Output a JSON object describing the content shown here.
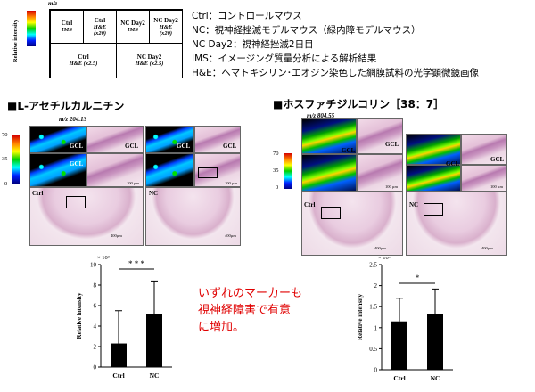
{
  "legend": {
    "mz_label": "m/z",
    "y_label": "Relative intensity",
    "cells": {
      "ctrl_ims": {
        "title": "Ctrl",
        "sub": "IMS"
      },
      "ctrl_he20": {
        "title": "Ctrl",
        "sub1": "H&E",
        "sub2": "(x20)"
      },
      "nc_ims": {
        "title": "NC Day2",
        "sub": "IMS"
      },
      "nc_he20": {
        "title": "NC Day2",
        "sub1": "H&E",
        "sub2": "(x20)"
      },
      "ctrl_he25": {
        "title": "Ctrl",
        "sub": "H&E (x2.5)"
      },
      "nc_he25": {
        "title": "NC Day2",
        "sub": "H&E (x2.5)"
      }
    },
    "definitions": [
      "Ctrl：コントロールマウス",
      "NC：視神経挫滅モデルマウス（緑内障モデルマウス）",
      "NC Day2：視神経挫滅2日目",
      "IMS：イメージング質量分析による解析結果",
      "H&E：ヘマトキシリン･エオジン染色した網膜試料の光学顕微鏡画像"
    ]
  },
  "panels": [
    {
      "title": "■L-アセチルカルニチン",
      "mz": "m/z 204.13",
      "colorbar": {
        "max": "70",
        "mid": "35",
        "min": "0"
      },
      "gcl": "GCL",
      "ctrl": "Ctrl",
      "nc": "NC",
      "scale_small": "100 µm",
      "scale_large": "400µm"
    },
    {
      "title": "■ホスファチジルコリン［38：7］",
      "mz": "m/z 804.55",
      "colorbar": {
        "max": "70",
        "mid": "35",
        "min": "0"
      },
      "gcl": "GCL",
      "ctrl": "Ctrl",
      "nc": "NC",
      "scale_small": "100 µm",
      "scale_large": "400µm"
    }
  ],
  "chart_data": [
    {
      "type": "bar",
      "categories": [
        "Ctrl",
        "NC"
      ],
      "values": [
        2.3,
        5.2
      ],
      "error": [
        3.2,
        3.2
      ],
      "ylabel": "Relative intensity",
      "y_multiplier": "× 10³",
      "ylim": [
        0,
        10
      ],
      "yticks": [
        0,
        2,
        4,
        6,
        8,
        10
      ],
      "significance": "* * *",
      "colors": {
        "bar": "#000000"
      }
    },
    {
      "type": "bar",
      "categories": [
        "Ctrl",
        "NC"
      ],
      "values": [
        1.15,
        1.32
      ],
      "error": [
        0.55,
        0.6
      ],
      "ylabel": "Relative intensity",
      "y_multiplier": "× 10⁵",
      "ylim": [
        0,
        2.5
      ],
      "yticks": [
        0,
        0.5,
        1,
        1.5,
        2,
        2.5
      ],
      "significance": "*",
      "colors": {
        "bar": "#000000"
      }
    }
  ],
  "note": [
    "いずれのマーカーも",
    "視神経障害で有意",
    "に増加。"
  ]
}
